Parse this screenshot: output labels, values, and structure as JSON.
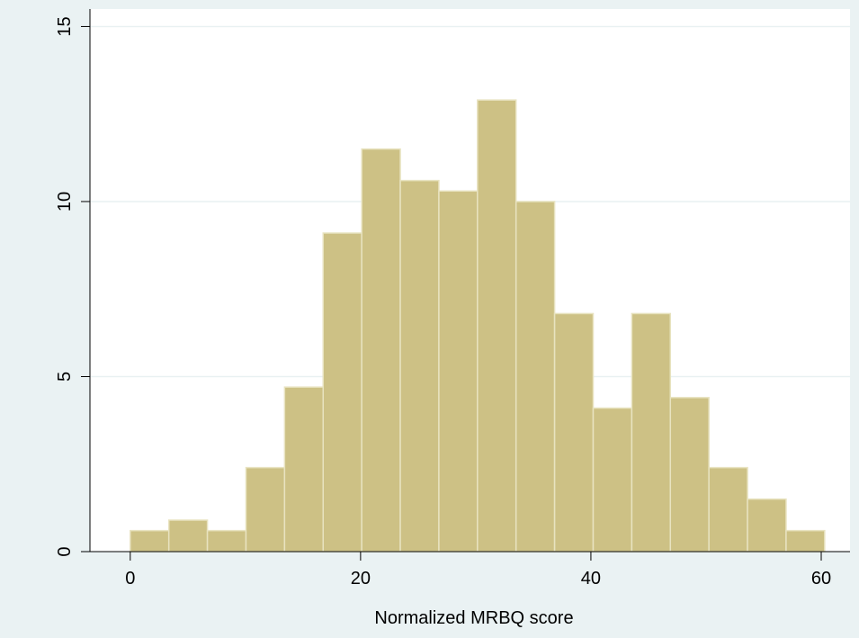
{
  "chart_data": {
    "type": "bar",
    "title": "",
    "xlabel": "Normalized MRBQ score",
    "ylabel": "",
    "bin_start": 0,
    "bin_width": 3.35,
    "values": [
      0.6,
      0.9,
      0.6,
      2.4,
      4.7,
      9.1,
      11.5,
      10.6,
      10.3,
      12.9,
      10.0,
      6.8,
      4.1,
      6.8,
      4.4,
      2.4,
      1.5,
      0.6
    ],
    "xlim": [
      -3.5,
      62.5
    ],
    "ylim": [
      0,
      15.5
    ],
    "x_ticks": [
      0,
      20,
      40,
      60
    ],
    "x_tick_labels": [
      "0",
      "20",
      "40",
      "60"
    ],
    "y_ticks": [
      0,
      5,
      10,
      15
    ],
    "y_tick_labels": [
      "0",
      "5",
      "10",
      "15"
    ],
    "grid": "horizontal",
    "colors": {
      "bar_fill": "#CDC185",
      "bar_stroke": "#E8E3C0",
      "plot_background": "#FFFFFF",
      "outer_background": "#EAF2F3",
      "gridline": "#E9F1F2",
      "axis": "#000000"
    }
  }
}
